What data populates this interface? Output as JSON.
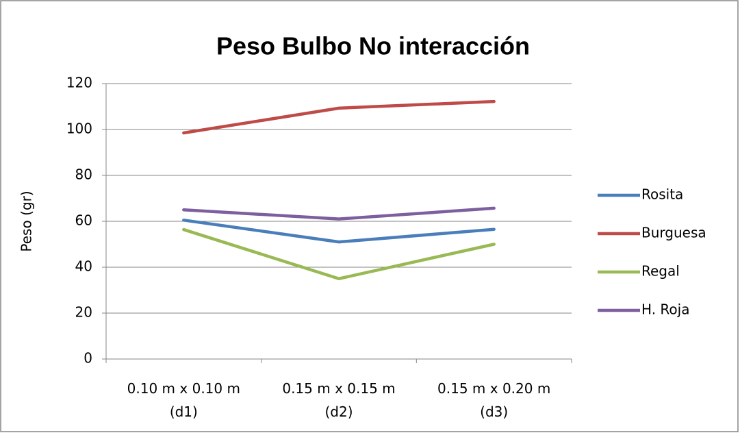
{
  "chart_data": {
    "type": "line",
    "title": "Peso Bulbo No interacción",
    "y_label": "Peso (gr)",
    "categories": [
      [
        "0.10 m x 0.10 m",
        "(d1)"
      ],
      [
        "0.15 m x 0.15 m",
        "(d2)"
      ],
      [
        "0.15 m x 0.20 m",
        "(d3)"
      ]
    ],
    "series": [
      {
        "name": "Rosita",
        "color": "#4a7ebb",
        "values": [
          60.5,
          51,
          56.5
        ]
      },
      {
        "name": "Burguesa",
        "color": "#be4b48",
        "values": [
          98.5,
          109.3,
          112.2
        ]
      },
      {
        "name": "Regal",
        "color": "#98b954",
        "values": [
          56.4,
          35,
          50
        ]
      },
      {
        "name": "H. Roja",
        "color": "#7d5fa0",
        "values": [
          65,
          61,
          65.7
        ]
      }
    ],
    "ylim": [
      0,
      120
    ],
    "yticks": [
      0,
      20,
      40,
      60,
      80,
      100,
      120
    ],
    "grid": true,
    "legend": "right"
  }
}
